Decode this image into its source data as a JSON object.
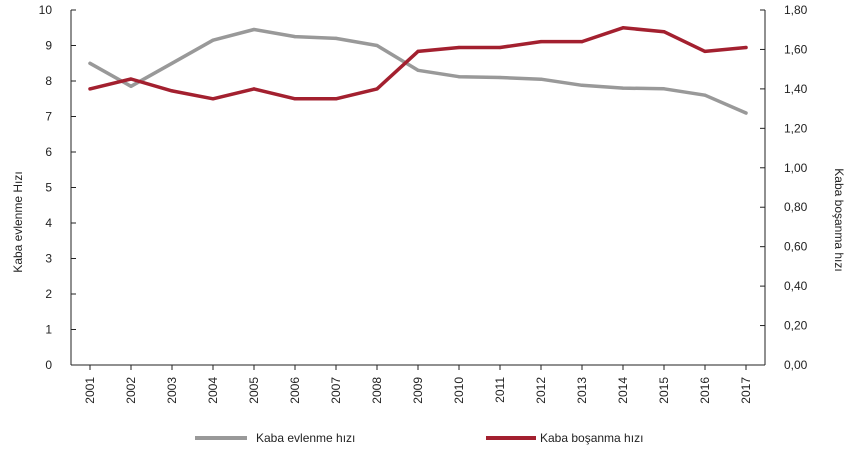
{
  "chart_data": {
    "type": "line",
    "x": [
      "2001",
      "2002",
      "2003",
      "2004",
      "2005",
      "2006",
      "2007",
      "2008",
      "2009",
      "2010",
      "2011",
      "2012",
      "2013",
      "2014",
      "2015",
      "2016",
      "2017"
    ],
    "series": [
      {
        "name": "Kaba evlenme hızı",
        "axis": "left",
        "color": "#999999",
        "values": [
          8.5,
          7.85,
          8.5,
          9.15,
          9.45,
          9.25,
          9.2,
          9.0,
          8.3,
          8.12,
          8.1,
          8.05,
          7.88,
          7.8,
          7.78,
          7.6,
          7.1
        ]
      },
      {
        "name": "Kaba boşanma hızı",
        "axis": "right",
        "color": "#a3202f",
        "values": [
          1.4,
          1.45,
          1.39,
          1.35,
          1.4,
          1.35,
          1.35,
          1.4,
          1.59,
          1.61,
          1.61,
          1.64,
          1.64,
          1.71,
          1.69,
          1.59,
          1.61
        ]
      }
    ],
    "left_axis": {
      "label": "Kaba evlenme Hızı",
      "ylim": [
        0,
        10
      ],
      "ticks": [
        "0",
        "1",
        "2",
        "3",
        "4",
        "5",
        "6",
        "7",
        "8",
        "9",
        "10"
      ]
    },
    "right_axis": {
      "label": "Kaba boşanma hızı",
      "ylim": [
        0,
        1.8
      ],
      "ticks": [
        "0,00",
        "0,20",
        "0,40",
        "0,60",
        "0,80",
        "1,00",
        "1,20",
        "1,40",
        "1,60",
        "1,80"
      ]
    },
    "grid": false,
    "legend_position": "bottom"
  }
}
